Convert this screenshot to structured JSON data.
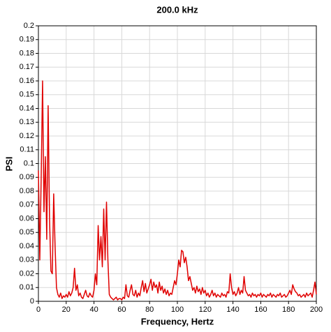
{
  "chart_data": {
    "type": "line",
    "title": "200.0 kHz",
    "x_label": "Frequency, Hertz",
    "y_label": "PSI",
    "color": "#e00000",
    "grid": true,
    "xlim": [
      0,
      200
    ],
    "xticks": [
      0,
      20,
      40,
      60,
      80,
      100,
      120,
      140,
      160,
      180,
      200
    ],
    "ylim": [
      0,
      0.2
    ],
    "yticks": [
      0,
      0.01,
      0.02,
      0.03,
      0.04,
      0.05,
      0.06,
      0.07,
      0.08,
      0.09,
      0.1,
      0.11,
      0.12,
      0.13,
      0.14,
      0.15,
      0.16,
      0.17,
      0.18,
      0.19,
      0.2
    ],
    "x": [
      0,
      1,
      2,
      3,
      4,
      5,
      6,
      7,
      8,
      9,
      10,
      11,
      12,
      13,
      14,
      15,
      16,
      17,
      18,
      19,
      20,
      21,
      22,
      23,
      24,
      25,
      26,
      27,
      28,
      29,
      30,
      31,
      32,
      33,
      34,
      35,
      36,
      37,
      38,
      39,
      40,
      41,
      42,
      43,
      44,
      45,
      46,
      47,
      48,
      49,
      50,
      51,
      52,
      53,
      54,
      55,
      56,
      57,
      58,
      59,
      60,
      61,
      62,
      63,
      64,
      65,
      66,
      67,
      68,
      69,
      70,
      71,
      72,
      73,
      74,
      75,
      76,
      77,
      78,
      79,
      80,
      81,
      82,
      83,
      84,
      85,
      86,
      87,
      88,
      89,
      90,
      91,
      92,
      93,
      94,
      95,
      96,
      97,
      98,
      99,
      100,
      101,
      102,
      103,
      104,
      105,
      106,
      107,
      108,
      109,
      110,
      111,
      112,
      113,
      114,
      115,
      116,
      117,
      118,
      119,
      120,
      121,
      122,
      123,
      124,
      125,
      126,
      127,
      128,
      129,
      130,
      131,
      132,
      133,
      134,
      135,
      136,
      137,
      138,
      139,
      140,
      141,
      142,
      143,
      144,
      145,
      146,
      147,
      148,
      149,
      150,
      151,
      152,
      153,
      154,
      155,
      156,
      157,
      158,
      159,
      160,
      161,
      162,
      163,
      164,
      165,
      166,
      167,
      168,
      169,
      170,
      171,
      172,
      173,
      174,
      175,
      176,
      177,
      178,
      179,
      180,
      181,
      182,
      183,
      184,
      185,
      186,
      187,
      188,
      189,
      190,
      191,
      192,
      193,
      194,
      195,
      196,
      197,
      198,
      199,
      200
    ],
    "values": [
      0.095,
      0.03,
      0.09,
      0.16,
      0.065,
      0.105,
      0.045,
      0.142,
      0.06,
      0.022,
      0.02,
      0.078,
      0.04,
      0.01,
      0.005,
      0.003,
      0.006,
      0.002,
      0.004,
      0.003,
      0.005,
      0.003,
      0.007,
      0.004,
      0.006,
      0.01,
      0.024,
      0.008,
      0.012,
      0.004,
      0.006,
      0.003,
      0.002,
      0.005,
      0.008,
      0.004,
      0.003,
      0.006,
      0.004,
      0.003,
      0.008,
      0.02,
      0.012,
      0.055,
      0.03,
      0.047,
      0.025,
      0.067,
      0.03,
      0.072,
      0.03,
      0.005,
      0.003,
      0.002,
      0.001,
      0.002,
      0.003,
      0.001,
      0.002,
      0.002,
      0.001,
      0.003,
      0.002,
      0.012,
      0.004,
      0.003,
      0.008,
      0.012,
      0.005,
      0.004,
      0.008,
      0.003,
      0.006,
      0.004,
      0.01,
      0.015,
      0.007,
      0.013,
      0.006,
      0.009,
      0.012,
      0.016,
      0.008,
      0.014,
      0.01,
      0.012,
      0.006,
      0.014,
      0.008,
      0.011,
      0.006,
      0.009,
      0.005,
      0.008,
      0.004,
      0.006,
      0.005,
      0.01,
      0.015,
      0.012,
      0.02,
      0.03,
      0.025,
      0.037,
      0.036,
      0.028,
      0.032,
      0.025,
      0.015,
      0.018,
      0.013,
      0.008,
      0.01,
      0.006,
      0.011,
      0.007,
      0.009,
      0.005,
      0.01,
      0.006,
      0.008,
      0.004,
      0.006,
      0.003,
      0.005,
      0.008,
      0.004,
      0.006,
      0.003,
      0.005,
      0.004,
      0.003,
      0.006,
      0.004,
      0.005,
      0.003,
      0.007,
      0.006,
      0.02,
      0.01,
      0.005,
      0.007,
      0.004,
      0.006,
      0.01,
      0.005,
      0.008,
      0.006,
      0.018,
      0.008,
      0.006,
      0.004,
      0.005,
      0.003,
      0.006,
      0.004,
      0.005,
      0.003,
      0.005,
      0.004,
      0.006,
      0.003,
      0.005,
      0.004,
      0.003,
      0.005,
      0.004,
      0.006,
      0.003,
      0.005,
      0.004,
      0.003,
      0.005,
      0.004,
      0.006,
      0.003,
      0.004,
      0.005,
      0.003,
      0.004,
      0.006,
      0.008,
      0.005,
      0.012,
      0.009,
      0.007,
      0.006,
      0.004,
      0.005,
      0.003,
      0.004,
      0.005,
      0.003,
      0.006,
      0.004,
      0.005,
      0.006,
      0.003,
      0.008,
      0.014,
      0.005
    ]
  }
}
